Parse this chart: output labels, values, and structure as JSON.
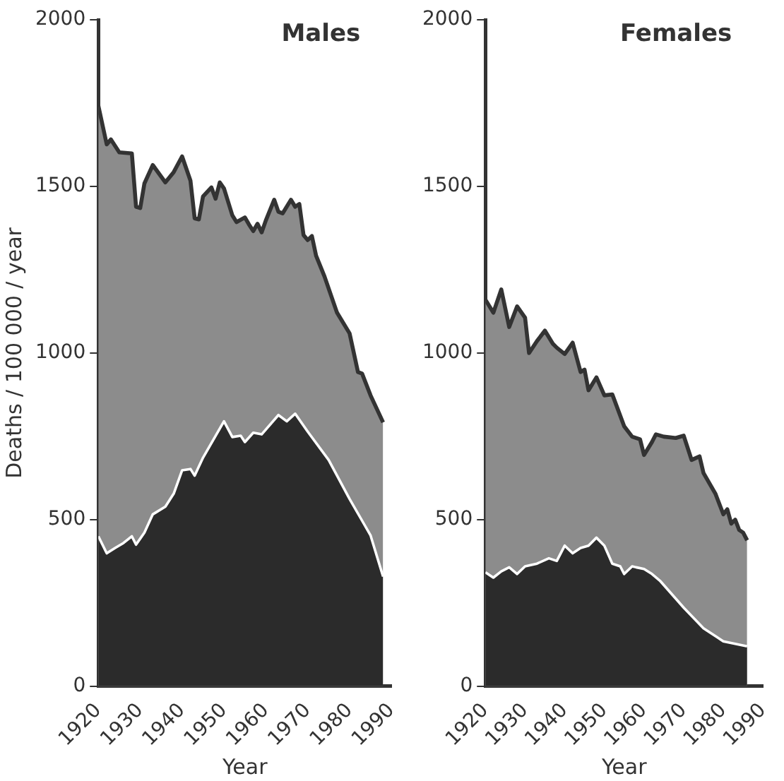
{
  "chart_data": [
    {
      "type": "area",
      "title": "Males",
      "xlabel": "Year",
      "ylabel": "Deaths / 100 000 / year",
      "xlim": [
        1920,
        1990
      ],
      "xticks": [
        1920,
        1930,
        1940,
        1950,
        1960,
        1970,
        1980,
        1990
      ],
      "ylim": [
        0,
        2000
      ],
      "yticks": [
        0,
        500,
        1000,
        1500,
        2000
      ],
      "grid": false,
      "legend": false,
      "series": [
        {
          "color": "#8c8c8c",
          "x": [
            1920,
            1922,
            1923,
            1925,
            1928,
            1929,
            1930,
            1931,
            1933,
            1936,
            1938,
            1940,
            1942,
            1943,
            1944,
            1945,
            1947,
            1948,
            1949,
            1950,
            1952,
            1953,
            1955,
            1956,
            1957,
            1958,
            1959,
            1960,
            1962,
            1963,
            1964,
            1966,
            1967,
            1968,
            1969,
            1970,
            1971,
            1972,
            1974,
            1977,
            1980,
            1982,
            1983,
            1985,
            1988
          ],
          "values": [
            1742,
            1626,
            1641,
            1602,
            1599,
            1439,
            1435,
            1509,
            1564,
            1512,
            1543,
            1590,
            1517,
            1404,
            1401,
            1470,
            1497,
            1463,
            1512,
            1494,
            1413,
            1393,
            1407,
            1385,
            1366,
            1388,
            1362,
            1398,
            1460,
            1424,
            1419,
            1460,
            1439,
            1447,
            1354,
            1339,
            1351,
            1292,
            1230,
            1121,
            1059,
            943,
            938,
            873,
            792
          ]
        },
        {
          "color": "#2b2b2b",
          "x": [
            1920,
            1922,
            1924,
            1926,
            1928,
            1929,
            1931,
            1933,
            1936,
            1938,
            1940,
            1942,
            1943,
            1945,
            1950,
            1952,
            1954,
            1955,
            1957,
            1959,
            1963,
            1965,
            1967,
            1970,
            1975,
            1980,
            1985,
            1988
          ],
          "values": [
            450,
            399,
            415,
            430,
            450,
            425,
            461,
            516,
            539,
            578,
            648,
            652,
            632,
            686,
            795,
            748,
            752,
            733,
            761,
            756,
            814,
            795,
            818,
            764,
            679,
            562,
            453,
            329
          ]
        }
      ]
    },
    {
      "type": "area",
      "title": "Females",
      "xlabel": "Year",
      "xlim": [
        1920,
        1990
      ],
      "xticks": [
        1920,
        1930,
        1940,
        1950,
        1960,
        1970,
        1980,
        1990
      ],
      "ylim": [
        0,
        2000
      ],
      "yticks": [
        0,
        500,
        1000,
        1500,
        2000
      ],
      "grid": false,
      "legend": false,
      "series": [
        {
          "color": "#8c8c8c",
          "x": [
            1920,
            1922,
            1924,
            1926,
            1928,
            1930,
            1931,
            1933,
            1935,
            1937,
            1938,
            1940,
            1942,
            1944,
            1945,
            1946,
            1948,
            1950,
            1952,
            1955,
            1957,
            1959,
            1960,
            1962,
            1963,
            1965,
            1968,
            1970,
            1972,
            1974,
            1975,
            1978,
            1980,
            1981,
            1982,
            1983,
            1984,
            1985,
            1986
          ],
          "values": [
            1160,
            1121,
            1191,
            1078,
            1140,
            1106,
            1000,
            1036,
            1067,
            1028,
            1016,
            997,
            1031,
            943,
            950,
            888,
            927,
            873,
            876,
            780,
            749,
            741,
            694,
            733,
            756,
            749,
            745,
            752,
            679,
            690,
            640,
            578,
            516,
            531,
            488,
            500,
            469,
            461,
            438
          ]
        },
        {
          "color": "#2b2b2b",
          "x": [
            1920,
            1922,
            1924,
            1926,
            1928,
            1930,
            1933,
            1936,
            1938,
            1940,
            1942,
            1944,
            1946,
            1948,
            1950,
            1952,
            1954,
            1955,
            1957,
            1958,
            1960,
            1962,
            1964,
            1966,
            1970,
            1975,
            1980,
            1986
          ],
          "values": [
            342,
            326,
            345,
            357,
            337,
            360,
            368,
            384,
            376,
            422,
            399,
            415,
            422,
            446,
            422,
            368,
            360,
            337,
            360,
            357,
            352,
            337,
            317,
            290,
            236,
            174,
            135,
            120
          ]
        }
      ]
    }
  ]
}
